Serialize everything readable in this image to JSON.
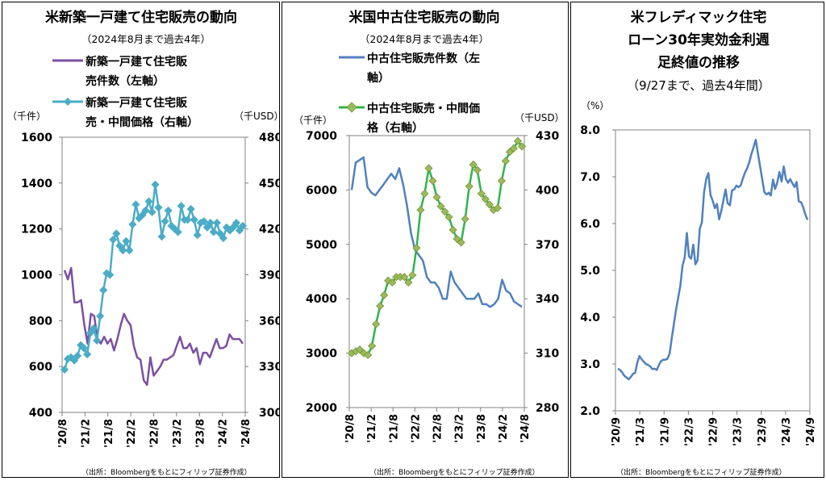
{
  "panels": [
    {
      "title": "米新築一戸建て住宅販売の動向",
      "subtitle": "（2024年8月まで過去4年）",
      "left_unit": "（千件）",
      "right_unit": "（千USD）",
      "source": "（出所：Bloombergをもとにフィリップ証券作成）",
      "legend": [
        {
          "line1": "新築一戸建て住宅販",
          "line2": "売件数（左軸）"
        },
        {
          "line1": "新築一戸建て住宅販",
          "line2": "売・中間価格（右軸）"
        }
      ]
    },
    {
      "title": "米国中古住宅販売の動向",
      "subtitle": "（2024年8月まで過去4年）",
      "left_unit": "（千件）",
      "right_unit": "（千USD）",
      "source": "（出所：Bloombergをもとにフィリップ証券作成）",
      "legend": [
        {
          "line1": "中古住宅販売件数（左",
          "line2": "軸）"
        },
        {
          "line1": "中古住宅販売・中間価",
          "line2": "格（右軸）"
        }
      ]
    },
    {
      "title_lines": [
        "米フレディマック住宅",
        "ローン30年実効金利週",
        "足終値の推移"
      ],
      "subtitle": "（9/27まで、過去4年間）",
      "left_unit": "（%）",
      "source": "（出所：Bloombergをもとにフィリップ証券作成）"
    }
  ],
  "chart_data": [
    {
      "type": "line",
      "x_ticks": [
        "'20/8",
        "'21/2",
        "'21/8",
        "'22/2",
        "'22/8",
        "'23/2",
        "'23/8",
        "'24/2",
        "'24/8"
      ],
      "y_left": {
        "range": [
          400,
          1600
        ],
        "ticks": [
          "400",
          "600",
          "800",
          "1000",
          "1200",
          "1400",
          "1600"
        ]
      },
      "y_right": {
        "range": [
          300,
          480
        ],
        "ticks": [
          "300",
          "330",
          "360",
          "390",
          "420",
          "450",
          "480"
        ]
      },
      "series": [
        {
          "name": "新築一戸建て住宅販売件数（左軸）",
          "axis": "left",
          "color": "#7b4fa3",
          "marker": "none",
          "values": [
            1020,
            980,
            1030,
            880,
            880,
            890,
            780,
            700,
            830,
            820,
            720,
            700,
            730,
            700,
            720,
            670,
            720,
            780,
            830,
            800,
            780,
            690,
            640,
            630,
            540,
            520,
            640,
            560,
            580,
            600,
            630,
            630,
            640,
            650,
            690,
            730,
            680,
            680,
            700,
            660,
            680,
            610,
            660,
            660,
            640,
            680,
            720,
            680,
            680,
            690,
            740,
            720,
            720,
            720,
            700
          ]
        },
        {
          "name": "新築一戸建て住宅販売・中間価格（右軸）",
          "axis": "right",
          "color": "#4bacc6",
          "marker": "diamond",
          "values": [
            328,
            335,
            336,
            334,
            337,
            344,
            342,
            338,
            352,
            355,
            347,
            363,
            380,
            391,
            390,
            413,
            417,
            409,
            406,
            412,
            406,
            423,
            436,
            427,
            429,
            432,
            438,
            431,
            449,
            434,
            415,
            425,
            432,
            422,
            420,
            418,
            435,
            426,
            426,
            433,
            426,
            416,
            424,
            425,
            421,
            424,
            418,
            424,
            417,
            414,
            421,
            419,
            421,
            424,
            419,
            422
          ]
        }
      ]
    },
    {
      "type": "line",
      "x_ticks": [
        "'20/8",
        "'21/2",
        "'21/8",
        "'22/2",
        "'22/8",
        "'23/2",
        "'23/8",
        "'24/2",
        "'24/8"
      ],
      "y_left": {
        "range": [
          2000,
          7000
        ],
        "ticks": [
          "2000",
          "3000",
          "4000",
          "5000",
          "6000",
          "7000"
        ]
      },
      "y_right": {
        "range": [
          280,
          430
        ],
        "ticks": [
          "280",
          "310",
          "340",
          "370",
          "400",
          "430"
        ]
      },
      "series": [
        {
          "name": "中古住宅販売件数（左軸）",
          "axis": "left",
          "color": "#4f81bd",
          "marker": "none",
          "values": [
            6000,
            6500,
            6550,
            6600,
            6050,
            5950,
            5900,
            6000,
            6100,
            6200,
            6300,
            6200,
            6400,
            6100,
            5700,
            5200,
            4900,
            4800,
            4700,
            4400,
            4300,
            4300,
            4200,
            4000,
            4000,
            4500,
            4300,
            4200,
            4100,
            4000,
            4000,
            4000,
            4100,
            3900,
            3900,
            3850,
            3900,
            4000,
            4350,
            4150,
            4100,
            3950,
            3900,
            3850
          ]
        },
        {
          "name": "中古住宅販売・中間価格（右軸）",
          "axis": "right",
          "color": "#2db54a",
          "marker": "diamond",
          "values": [
            310,
            311,
            312,
            310,
            309,
            314,
            326,
            336,
            342,
            350,
            349,
            352,
            352,
            352,
            349,
            353,
            368,
            389,
            398,
            412,
            405,
            396,
            391,
            388,
            385,
            378,
            373,
            371,
            384,
            402,
            414,
            411,
            398,
            395,
            392,
            389,
            390,
            405,
            416,
            421,
            423,
            427,
            424
          ]
        }
      ]
    },
    {
      "type": "line",
      "x_ticks": [
        "'20/9",
        "'21/3",
        "'21/9",
        "'22/3",
        "'22/9",
        "'23/3",
        "'23/9",
        "'24/3",
        "'24/9"
      ],
      "y_left": {
        "range": [
          2.0,
          8.0
        ],
        "ticks": [
          "2.0",
          "3.0",
          "4.0",
          "5.0",
          "6.0",
          "7.0",
          "8.0"
        ]
      },
      "series": [
        {
          "name": "30年実効金利",
          "axis": "left",
          "color": "#4f81bd",
          "marker": "none",
          "values": [
            2.9,
            2.87,
            2.82,
            2.75,
            2.71,
            2.67,
            2.72,
            2.79,
            2.81,
            3.02,
            3.17,
            3.1,
            3.05,
            3.0,
            2.98,
            2.95,
            2.89,
            2.9,
            2.87,
            2.97,
            3.06,
            3.09,
            3.09,
            3.11,
            3.22,
            3.55,
            3.85,
            4.16,
            4.42,
            4.67,
            5.1,
            5.27,
            5.8,
            5.3,
            5.25,
            5.55,
            5.13,
            5.22,
            5.89,
            6.02,
            6.66,
            6.95,
            7.08,
            6.61,
            6.49,
            6.33,
            6.42,
            6.09,
            6.27,
            6.5,
            6.73,
            6.43,
            6.39,
            6.71,
            6.73,
            6.81,
            6.78,
            6.81,
            6.96,
            7.09,
            7.18,
            7.31,
            7.49,
            7.63,
            7.79,
            7.5,
            7.22,
            6.95,
            6.67,
            6.62,
            6.66,
            6.6,
            6.94,
            6.74,
            6.88,
            7.1,
            6.9,
            7.22,
            6.95,
            6.87,
            6.95,
            6.86,
            6.78,
            6.89,
            6.47,
            6.46,
            6.35,
            6.2,
            6.08
          ]
        }
      ]
    }
  ]
}
